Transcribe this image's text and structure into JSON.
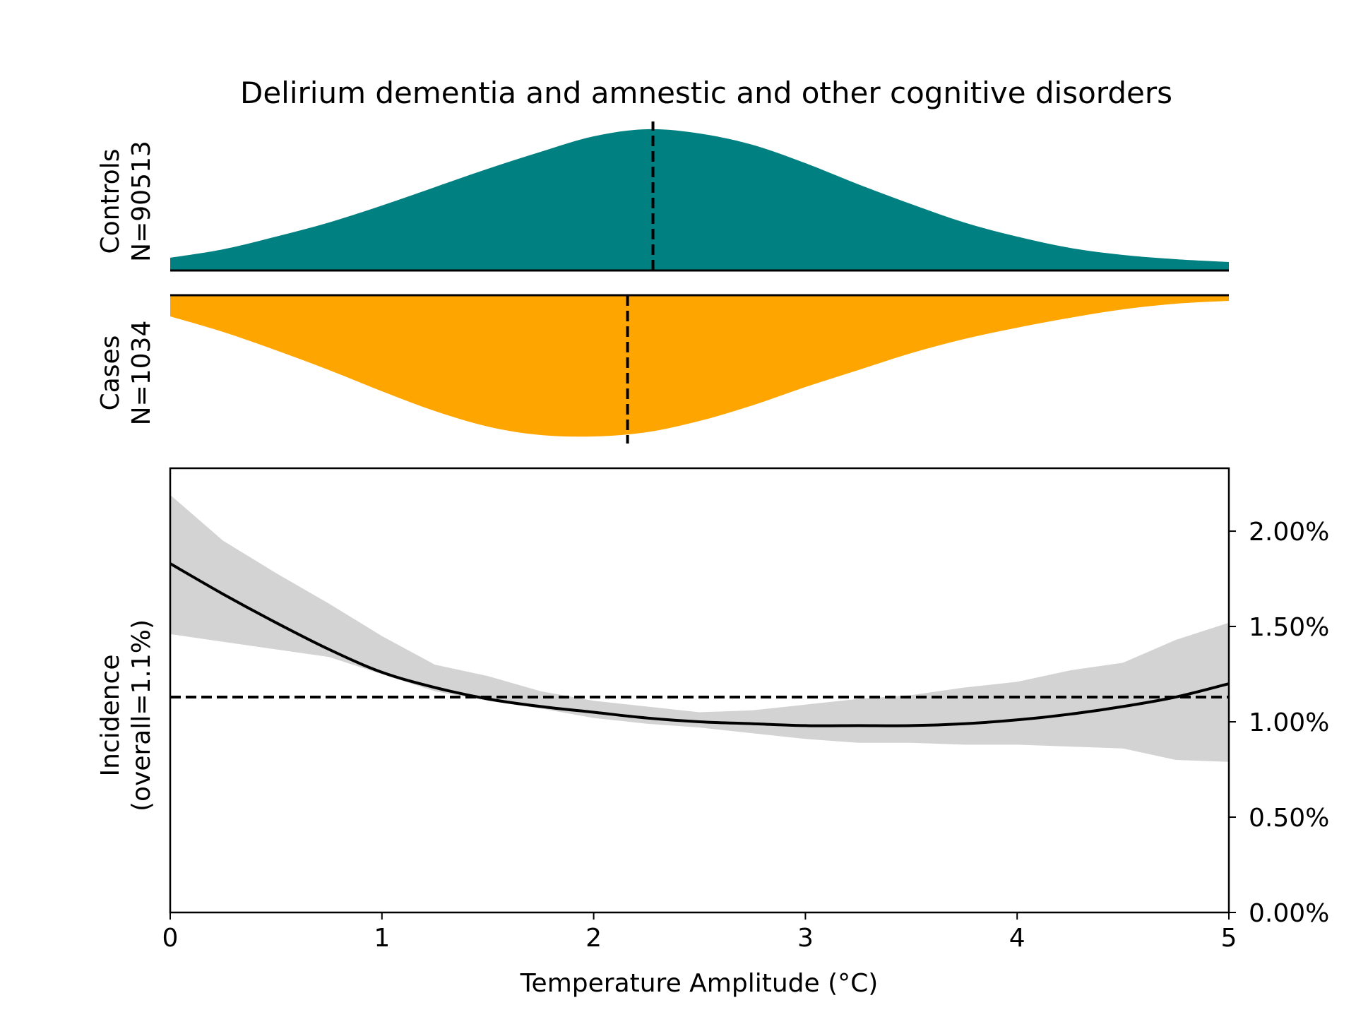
{
  "chart_data": {
    "type": "area",
    "title": "Delirium dementia and amnestic and other cognitive disorders",
    "xlabel": "Temperature Amplitude (°C)",
    "xlim": [
      0,
      5
    ],
    "xticks": [
      0,
      1,
      2,
      3,
      4,
      5
    ],
    "panels": {
      "controls": {
        "label_line1": "Controls",
        "label_line2": "N=90513",
        "color": "#008080",
        "median": 2.28,
        "x": [
          0,
          0.25,
          0.5,
          0.75,
          1.0,
          1.25,
          1.5,
          1.75,
          2.0,
          2.25,
          2.5,
          2.75,
          3.0,
          3.25,
          3.5,
          3.75,
          4.0,
          4.25,
          4.5,
          4.75,
          5.0
        ],
        "density": [
          0.09,
          0.15,
          0.24,
          0.34,
          0.46,
          0.59,
          0.72,
          0.84,
          0.95,
          1.0,
          0.97,
          0.89,
          0.76,
          0.61,
          0.47,
          0.34,
          0.24,
          0.16,
          0.11,
          0.08,
          0.06
        ]
      },
      "cases": {
        "label_line1": "Cases",
        "label_line2": "N=1034",
        "color": "#FFA500",
        "median": 2.16,
        "x": [
          0,
          0.25,
          0.5,
          0.75,
          1.0,
          1.25,
          1.5,
          1.75,
          2.0,
          2.25,
          2.5,
          2.75,
          3.0,
          3.25,
          3.5,
          3.75,
          4.0,
          4.25,
          4.5,
          4.75,
          5.0
        ],
        "density": [
          0.15,
          0.26,
          0.39,
          0.53,
          0.68,
          0.82,
          0.93,
          0.99,
          1.0,
          0.97,
          0.89,
          0.78,
          0.65,
          0.53,
          0.41,
          0.31,
          0.23,
          0.16,
          0.1,
          0.06,
          0.04
        ]
      }
    },
    "incidence": {
      "ylabel_line1": "Incidence",
      "ylabel_line2": "(overall=1.1%)",
      "overall": 1.13,
      "ylim": [
        0,
        2.33
      ],
      "yticks": [
        0,
        0.5,
        1.0,
        1.5,
        2.0
      ],
      "ytick_labels": [
        "0.00%",
        "0.50%",
        "1.00%",
        "1.50%",
        "2.00%"
      ],
      "y_axis_side": "right",
      "x": [
        0,
        0.25,
        0.5,
        0.75,
        1.0,
        1.25,
        1.5,
        1.75,
        2.0,
        2.25,
        2.5,
        2.75,
        3.0,
        3.25,
        3.5,
        3.75,
        4.0,
        4.25,
        4.5,
        4.75,
        5.0
      ],
      "y": [
        1.83,
        1.67,
        1.52,
        1.38,
        1.26,
        1.18,
        1.12,
        1.08,
        1.05,
        1.02,
        1.0,
        0.99,
        0.98,
        0.98,
        0.98,
        0.99,
        1.01,
        1.04,
        1.08,
        1.13,
        1.2
      ],
      "lower": [
        1.46,
        1.42,
        1.38,
        1.34,
        1.25,
        1.16,
        1.11,
        1.07,
        1.02,
        0.99,
        0.97,
        0.94,
        0.91,
        0.89,
        0.89,
        0.88,
        0.88,
        0.87,
        0.86,
        0.8,
        0.79
      ],
      "upper": [
        2.19,
        1.95,
        1.78,
        1.62,
        1.45,
        1.3,
        1.24,
        1.16,
        1.11,
        1.08,
        1.05,
        1.06,
        1.09,
        1.12,
        1.14,
        1.18,
        1.21,
        1.27,
        1.31,
        1.43,
        1.52
      ],
      "ci_color": "#d3d3d3"
    }
  }
}
